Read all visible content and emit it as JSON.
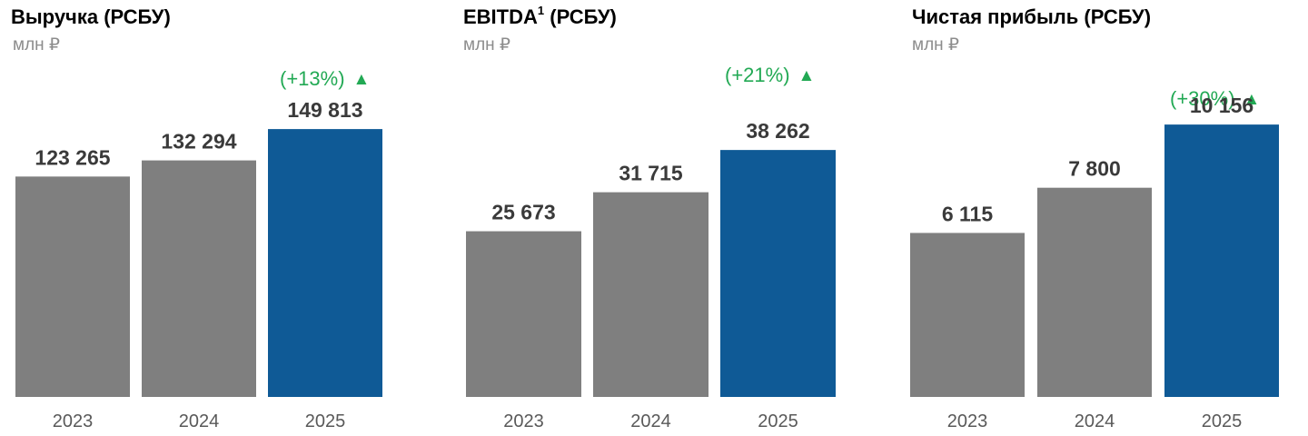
{
  "colors": {
    "bar_previous": "#7f7f7f",
    "bar_current": "#0f5a96",
    "growth": "#22a954",
    "value_label": "#3a3a3a",
    "tick_label": "#595959"
  },
  "growth_icon": "up-triangle-icon",
  "chart_data": [
    {
      "type": "bar",
      "title": "Выручка (РСБУ)",
      "unit": "млн ₽",
      "categories": [
        "2023",
        "2024",
        "2025"
      ],
      "values": [
        123265,
        132294,
        149813
      ],
      "value_labels": [
        "123 265",
        "132 294",
        "149 813"
      ],
      "ylim": [
        0,
        222000
      ],
      "highlight_index": 2,
      "growth_label": "(+13%)",
      "growth_arrow": "▲"
    },
    {
      "type": "bar",
      "title": "EBITDA",
      "title_footnote": "1",
      "title_suffix": "(РСБУ)",
      "unit": "млн ₽",
      "categories": [
        "2023",
        "2024",
        "2025"
      ],
      "values": [
        25673,
        31715,
        38262
      ],
      "value_labels": [
        "25 673",
        "31 715",
        "38 262"
      ],
      "ylim": [
        0,
        61500
      ],
      "highlight_index": 2,
      "growth_label": "(+21%)",
      "growth_arrow": "▲"
    },
    {
      "type": "bar",
      "title": "Чистая прибыль (РСБУ)",
      "unit": "млн ₽",
      "categories": [
        "2023",
        "2024",
        "2025"
      ],
      "values": [
        6115,
        7800,
        10156
      ],
      "value_labels": [
        "6 115",
        "7 800",
        "10 156"
      ],
      "ylim": [
        0,
        14800
      ],
      "highlight_index": 2,
      "growth_label": "(+30%)",
      "growth_arrow": "▲"
    }
  ]
}
